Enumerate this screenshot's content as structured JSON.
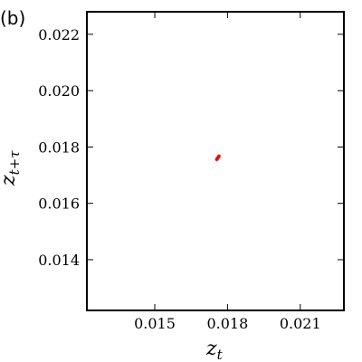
{
  "panel_label": "(b)",
  "chart_data": {
    "type": "scatter",
    "xlabel": {
      "symbol": "z",
      "subscript": "t"
    },
    "ylabel": {
      "symbol": "z",
      "subscript": "t+τ"
    },
    "x": [
      0.01755,
      0.01758,
      0.0176,
      0.01763,
      0.01765
    ],
    "series": [
      {
        "color": "#ff0000",
        "values": [
          0.01756,
          0.01759,
          0.01762,
          0.01765,
          0.01768
        ]
      }
    ],
    "xlim": [
      0.0122,
      0.0228
    ],
    "ylim": [
      0.0122,
      0.0228
    ],
    "xticks": [
      0.015,
      0.018,
      0.021
    ],
    "yticks": [
      0.014,
      0.016,
      0.018,
      {
        "value": 0.02,
        "label": "0.020"
      },
      0.022
    ]
  }
}
